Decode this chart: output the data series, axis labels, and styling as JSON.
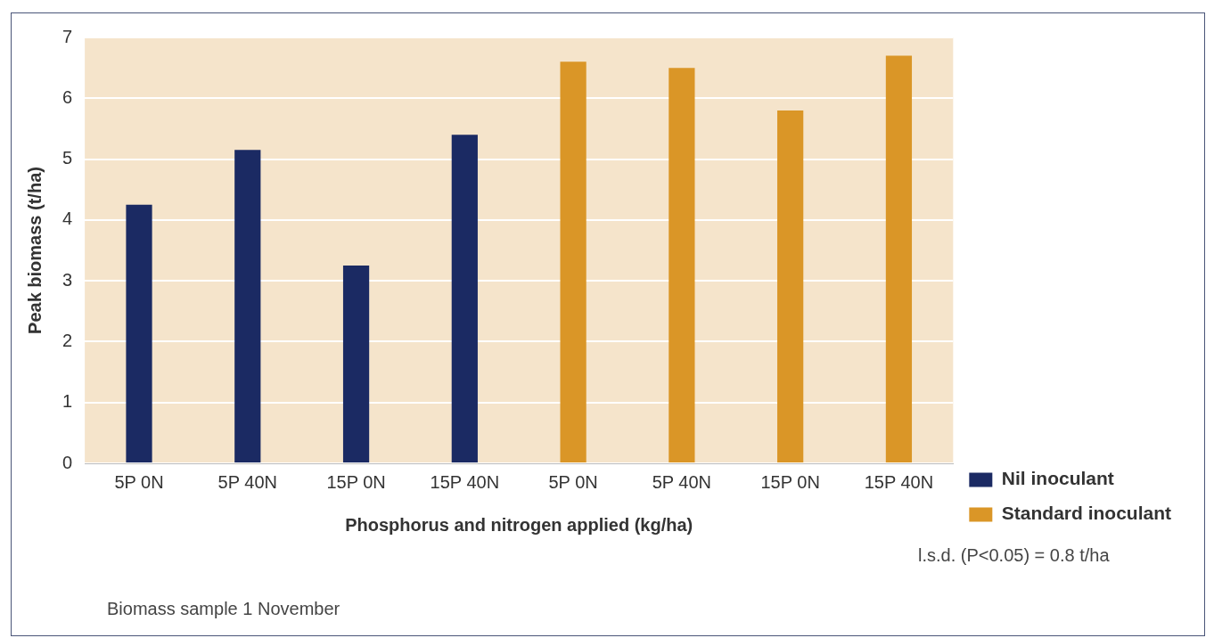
{
  "chart_data": {
    "type": "bar",
    "xlabel": "Phosphorus and nitrogen applied (kg/ha)",
    "ylabel": "Peak biomass (t/ha)",
    "categories": [
      "5P 0N",
      "5P 40N",
      "15P 0N",
      "15P 40N",
      "5P 0N",
      "5P 40N",
      "15P 0N",
      "15P 40N"
    ],
    "series": [
      {
        "name": "Nil inoculant",
        "color": "#1b2a63",
        "values": [
          4.25,
          5.15,
          3.25,
          5.4,
          null,
          null,
          null,
          null
        ]
      },
      {
        "name": "Standard inoculant",
        "color": "#da9627",
        "values": [
          null,
          null,
          null,
          null,
          6.6,
          6.5,
          5.8,
          6.7
        ]
      }
    ],
    "ylim": [
      0,
      7
    ],
    "yticks": [
      0,
      1,
      2,
      3,
      4,
      5,
      6,
      7
    ],
    "grid": "y",
    "legend": "bottom right",
    "annotations": [
      "l.s.d. (P<0.05) = 0.8 t/ha",
      "Biomass sample 1 November"
    ]
  }
}
